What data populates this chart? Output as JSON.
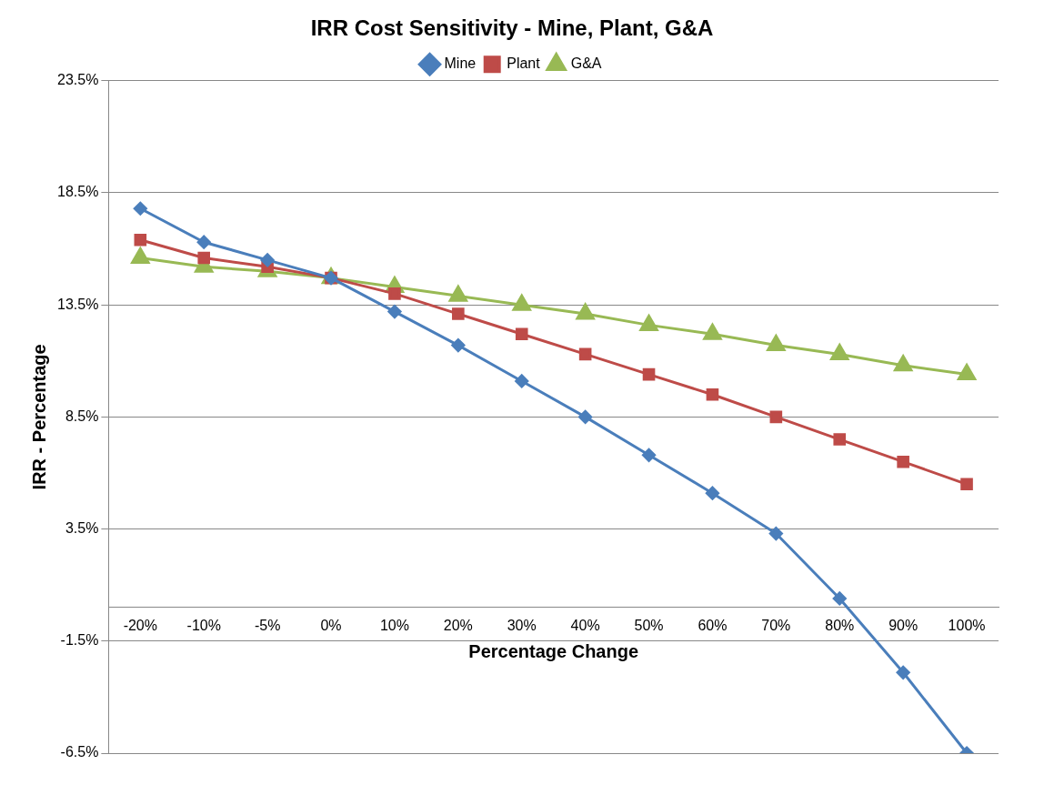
{
  "chart_data": {
    "type": "line",
    "title": "IRR Cost Sensitivity - Mine, Plant, G&A",
    "xlabel": "Percentage Change",
    "ylabel": "IRR - Percentage",
    "categories": [
      "-20%",
      "-10%",
      "-5%",
      "0%",
      "10%",
      "20%",
      "30%",
      "40%",
      "50%",
      "60%",
      "70%",
      "80%",
      "90%",
      "100%"
    ],
    "series": [
      {
        "name": "Mine",
        "color": "#4a7ebb",
        "marker": "diamond",
        "values": [
          17.8,
          16.3,
          15.5,
          14.7,
          13.2,
          11.7,
          10.1,
          8.5,
          6.8,
          5.1,
          3.3,
          0.4,
          -2.9,
          -6.5
        ]
      },
      {
        "name": "Plant",
        "color": "#be4b48",
        "marker": "square",
        "values": [
          16.4,
          15.6,
          15.2,
          14.7,
          14.0,
          13.1,
          12.2,
          11.3,
          10.4,
          9.5,
          8.5,
          7.5,
          6.5,
          5.5
        ]
      },
      {
        "name": "G&A",
        "color": "#98b954",
        "marker": "triangle",
        "values": [
          15.6,
          15.2,
          15.0,
          14.7,
          14.3,
          13.9,
          13.5,
          13.1,
          12.6,
          12.2,
          11.7,
          11.3,
          10.8,
          10.4
        ]
      }
    ],
    "ylim": [
      -6.5,
      23.5
    ],
    "yticks": [
      {
        "value": -6.5,
        "label": "-6.5%"
      },
      {
        "value": -1.5,
        "label": "-1.5%"
      },
      {
        "value": 3.5,
        "label": "3.5%"
      },
      {
        "value": 8.5,
        "label": "8.5%"
      },
      {
        "value": 13.5,
        "label": "13.5%"
      },
      {
        "value": 18.5,
        "label": "18.5%"
      },
      {
        "value": 23.5,
        "label": "23.5%"
      }
    ],
    "grid": "y",
    "legend": "top",
    "line_style": "solid"
  }
}
